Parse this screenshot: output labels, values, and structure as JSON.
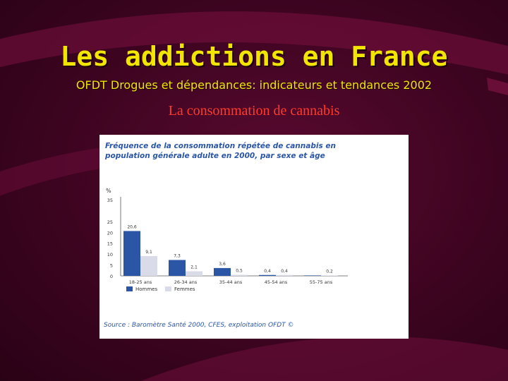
{
  "slide": {
    "title": "Les addictions en France",
    "subtitle": "OFDT Drogues et dépendances: indicateurs et tendances 2002",
    "heading": "La consommation de cannabis"
  },
  "chart_data": {
    "type": "bar",
    "title_line1": "Fréquence de la consommation répétée de cannabis en",
    "title_line2": "population générale adulte en 2000, par sexe et âge",
    "ylabel": "%",
    "ylim": [
      0,
      35
    ],
    "yticks": [
      0,
      5,
      10,
      15,
      20,
      25,
      35
    ],
    "categories": [
      "18-25 ans",
      "26-34 ans",
      "35-44 ans",
      "45-54 ans",
      "55-75 ans"
    ],
    "series": [
      {
        "name": "Hommes",
        "color": "#2b56a6",
        "values": [
          20.6,
          7.3,
          3.6,
          0.4,
          0.2
        ],
        "labels": [
          "20,6",
          "7,3",
          "3,6",
          "0,4",
          ""
        ]
      },
      {
        "name": "Femmes",
        "color": "#d9dce8",
        "values": [
          9.1,
          2.1,
          0.5,
          0.4,
          0.2
        ],
        "labels": [
          "9,1",
          "2,1",
          "0,5",
          "0,4",
          "0,2"
        ]
      }
    ],
    "source": "Source : Baromètre Santé 2000, CFES, exploitation OFDT ©"
  }
}
